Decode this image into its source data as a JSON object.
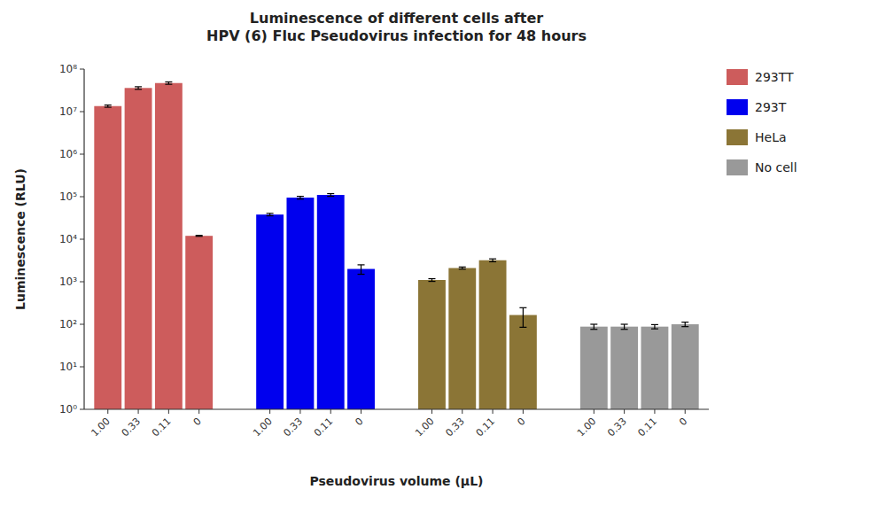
{
  "chart_data": {
    "type": "bar",
    "title": "Luminescence of different cells after\nHPV (6) Fluc Pseudovirus infection for 48 hours",
    "xlabel": "Pseudovirus volume (μL)",
    "ylabel": "Luminescence (RLU)",
    "categories": [
      "1.00",
      "0.33",
      "0.11",
      "0",
      "1.00",
      "0.33",
      "0.11",
      "0",
      "1.00",
      "0.33",
      "0.11",
      "0",
      "1.00",
      "0.33",
      "0.11",
      "0"
    ],
    "series": [
      {
        "name": "293TT",
        "color": "#CD5C5C",
        "values": [
          13500000.0,
          36000000.0,
          47000000.0,
          12000.0,
          null,
          null,
          null,
          null,
          null,
          null,
          null,
          null,
          null,
          null,
          null,
          null
        ],
        "errors": [
          800000.0,
          2500000.0,
          3000000.0,
          300,
          null,
          null,
          null,
          null,
          null,
          null,
          null,
          null,
          null,
          null,
          null,
          null
        ]
      },
      {
        "name": "293T",
        "color": "#0000EE",
        "values": [
          null,
          null,
          null,
          null,
          38000.0,
          95000.0,
          110000.0,
          2000,
          null,
          null,
          null,
          null,
          null,
          null,
          null,
          null
        ],
        "errors": [
          null,
          null,
          null,
          null,
          2500,
          7000,
          8000,
          500,
          null,
          null,
          null,
          null,
          null,
          null,
          null,
          null
        ]
      },
      {
        "name": "HeLa",
        "color": "#8B7536",
        "values": [
          null,
          null,
          null,
          null,
          null,
          null,
          null,
          null,
          1100,
          2100,
          3200,
          165,
          null,
          null,
          null,
          null
        ],
        "errors": [
          null,
          null,
          null,
          null,
          null,
          null,
          null,
          null,
          80,
          120,
          250,
          80,
          null,
          null,
          null,
          null
        ]
      },
      {
        "name": "No cell",
        "color": "#999999",
        "values": [
          null,
          null,
          null,
          null,
          null,
          null,
          null,
          null,
          null,
          null,
          null,
          null,
          88,
          88,
          88,
          100
        ],
        "errors": [
          null,
          null,
          null,
          null,
          null,
          null,
          null,
          null,
          null,
          null,
          null,
          null,
          12,
          12,
          10,
          12
        ]
      }
    ],
    "log": "y",
    "ylim": [
      1,
      100000000.0
    ],
    "yticks": [
      {
        "value": 1,
        "label": "10⁰"
      },
      {
        "value": 10,
        "label": "10¹"
      },
      {
        "value": 100,
        "label": "10²"
      },
      {
        "value": 1000,
        "label": "10³"
      },
      {
        "value": 10000,
        "label": "10⁴"
      },
      {
        "value": 100000,
        "label": "10⁵"
      },
      {
        "value": 1000000,
        "label": "10⁶"
      },
      {
        "value": 10000000,
        "label": "10⁷"
      },
      {
        "value": 100000000,
        "label": "10⁸"
      }
    ],
    "grid": false,
    "legend": "upper right"
  }
}
